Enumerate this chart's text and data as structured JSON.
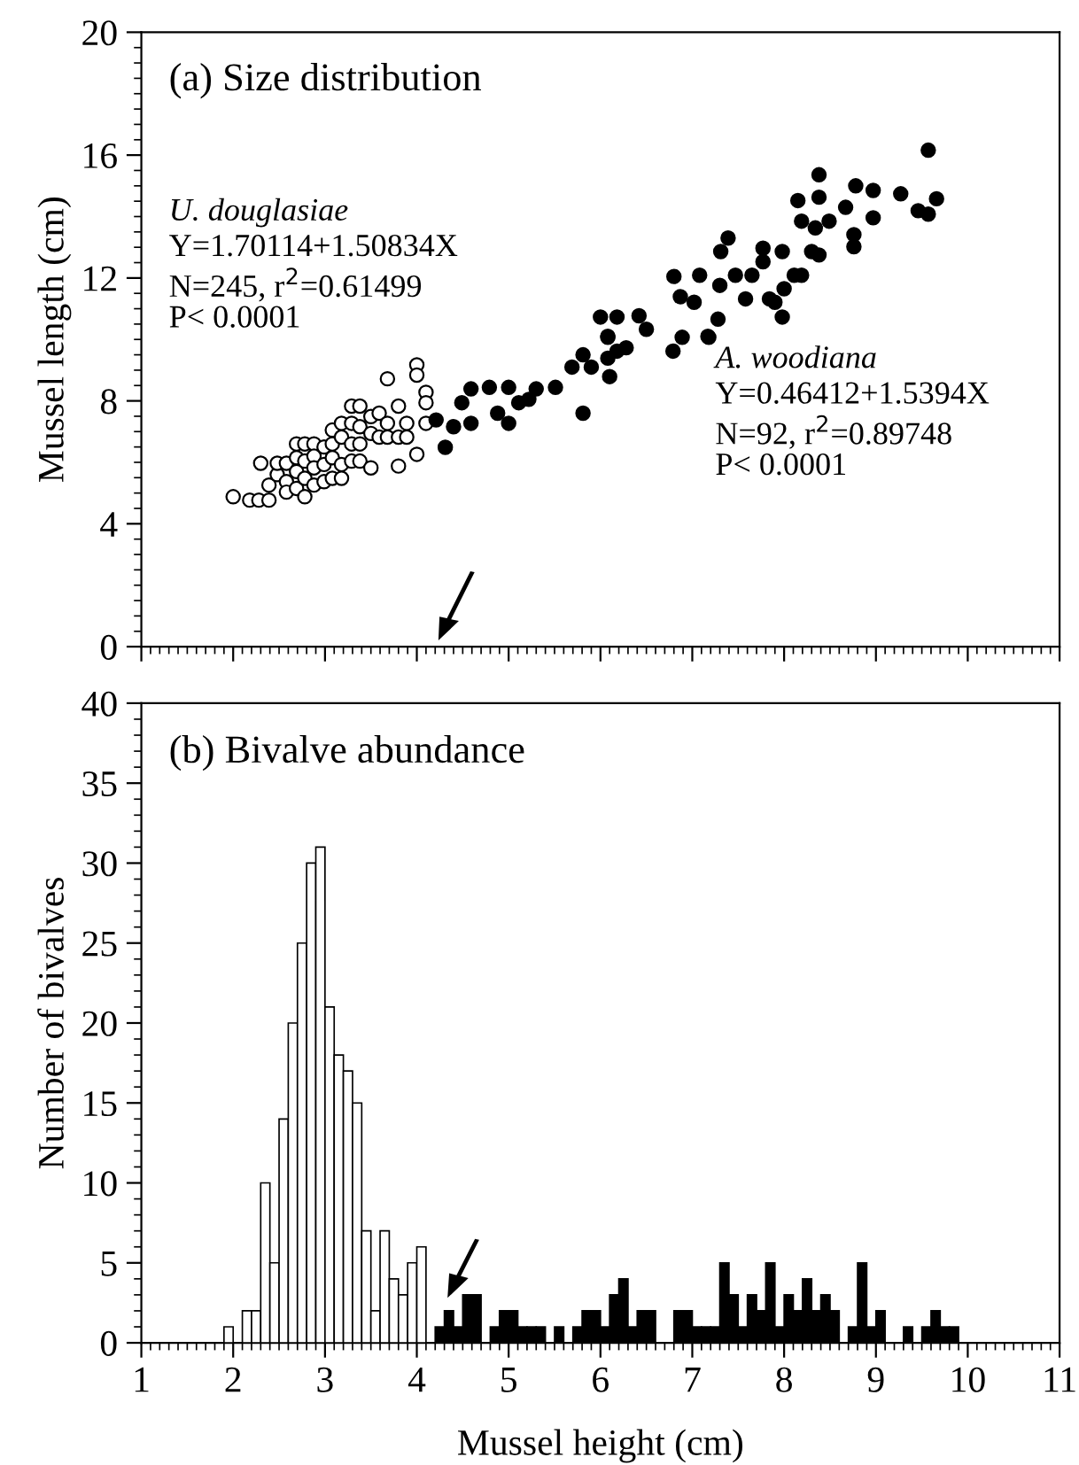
{
  "chart_data": [
    {
      "type": "scatter",
      "title": "(a) Size distribution",
      "ylabel": "Mussel length (cm)",
      "xlim": [
        1,
        11
      ],
      "xticks": [
        1,
        2,
        3,
        4,
        5,
        6,
        7,
        8,
        9,
        10,
        11
      ],
      "ylim": [
        0,
        20
      ],
      "yticks": [
        0,
        4,
        8,
        12,
        16,
        20
      ],
      "tick_labels": "y",
      "marker": "circle",
      "grid": false,
      "legend": false,
      "annotations": [
        "U. douglasiae",
        "Y=1.70114+1.50834X",
        "N=245, r$^{2}$=0.61499",
        "P< 0.0001",
        "A. woodiana",
        "Y=0.46412+1.5394X",
        "N=92, r$^{2}$=0.89748",
        "P< 0.0001"
      ],
      "series": [
        {
          "color": "#ffffff",
          "x": [
            2.0,
            2.18,
            2.28,
            2.3,
            2.39,
            2.39,
            2.48,
            2.48,
            2.58,
            2.58,
            2.58,
            2.69,
            2.69,
            2.69,
            2.69,
            2.78,
            2.78,
            2.78,
            2.78,
            2.88,
            2.88,
            2.88,
            2.88,
            2.99,
            2.99,
            2.99,
            3.08,
            3.08,
            3.08,
            3.08,
            3.18,
            3.18,
            3.18,
            3.18,
            3.29,
            3.29,
            3.29,
            3.29,
            3.38,
            3.38,
            3.38,
            3.38,
            3.5,
            3.5,
            3.5,
            3.59,
            3.59,
            3.68,
            3.68,
            3.68,
            3.8,
            3.8,
            3.8,
            3.89,
            3.89,
            4.0,
            4.0,
            4.0,
            4.1,
            4.1,
            4.1
          ],
          "values": [
            4.88,
            4.77,
            4.77,
            5.97,
            4.77,
            5.26,
            5.6,
            5.97,
            5.97,
            5.37,
            5.03,
            6.6,
            6.15,
            5.7,
            5.15,
            6.6,
            6.04,
            5.48,
            4.88,
            6.6,
            6.2,
            5.82,
            5.26,
            6.5,
            5.93,
            5.37,
            7.05,
            6.6,
            6.15,
            5.48,
            7.27,
            6.82,
            5.93,
            5.48,
            7.83,
            7.27,
            6.6,
            6.04,
            7.83,
            7.16,
            6.6,
            6.04,
            7.49,
            6.94,
            5.82,
            7.6,
            6.82,
            8.72,
            7.27,
            6.82,
            7.83,
            6.82,
            5.88,
            7.27,
            6.82,
            9.17,
            8.84,
            6.26,
            8.28,
            7.94,
            7.27
          ]
        },
        {
          "color": "#000000",
          "x": [
            4.21,
            4.31,
            4.4,
            4.49,
            4.59,
            4.59,
            4.79,
            4.88,
            5.0,
            5.0,
            5.11,
            5.22,
            5.3,
            5.51,
            5.69,
            5.81,
            5.81,
            5.9,
            6.08,
            6.1,
            6.18,
            6.28,
            6.79,
            6.89,
            7.18,
            6.08,
            6.0,
            6.18,
            6.08,
            6.42,
            6.5,
            6.8,
            6.87,
            7.02,
            7.08,
            7.17,
            7.28,
            7.3,
            7.31,
            7.39,
            7.47,
            7.58,
            7.65,
            7.77,
            7.77,
            7.84,
            7.9,
            7.98,
            8.0,
            7.98,
            8.11,
            8.19,
            8.15,
            8.19,
            8.3,
            8.38,
            8.38,
            8.34,
            8.49,
            8.38,
            8.67,
            8.78,
            8.76,
            8.76,
            8.97,
            8.97,
            9.27,
            9.46,
            9.57,
            9.57,
            9.66
          ],
          "values": [
            7.38,
            6.49,
            7.16,
            7.94,
            8.39,
            7.27,
            8.44,
            7.6,
            8.44,
            7.27,
            7.94,
            8.05,
            8.39,
            8.44,
            9.1,
            9.5,
            7.6,
            9.1,
            9.39,
            8.79,
            9.62,
            9.73,
            9.62,
            10.07,
            10.07,
            10.07,
            10.73,
            10.73,
            10.1,
            10.77,
            10.33,
            12.05,
            11.39,
            11.21,
            12.09,
            10.1,
            10.66,
            11.76,
            12.86,
            13.3,
            12.09,
            11.32,
            12.09,
            12.97,
            12.53,
            11.32,
            11.21,
            10.73,
            11.65,
            12.86,
            12.09,
            12.09,
            14.52,
            13.85,
            12.86,
            15.36,
            14.63,
            13.63,
            13.85,
            12.75,
            14.3,
            15.0,
            13.41,
            13.02,
            14.85,
            13.96,
            14.74,
            14.19,
            16.16,
            14.08,
            14.58
          ]
        }
      ]
    },
    {
      "type": "histogram",
      "title": "(b) Bivalve abundance",
      "xlabel": "Mussel height (cm)",
      "ylabel": "Number of bivalves",
      "xlim": [
        1,
        11
      ],
      "xticks": [
        1,
        2,
        3,
        4,
        5,
        6,
        7,
        8,
        9,
        10,
        11
      ],
      "ylim": [
        0,
        40
      ],
      "yticks": [
        0,
        5,
        10,
        15,
        20,
        25,
        30,
        35,
        40
      ],
      "grid": false,
      "legend": false,
      "bins": [
        1.9,
        2.0,
        2.1,
        2.2,
        2.3,
        2.4,
        2.5,
        2.6,
        2.7,
        2.8,
        2.9,
        3.0,
        3.1,
        3.2,
        3.3,
        3.4,
        3.5,
        3.6,
        3.7,
        3.8,
        3.9,
        4.0,
        4.1,
        4.2,
        4.3,
        4.4,
        4.5,
        4.6,
        4.7,
        4.8,
        4.9,
        5.0,
        5.1,
        5.2,
        5.3,
        5.4,
        5.5,
        5.6,
        5.7,
        5.8,
        5.9,
        6.0,
        6.1,
        6.2,
        6.3,
        6.4,
        6.5,
        6.6,
        6.7,
        6.8,
        6.9,
        7.0,
        7.1,
        7.2,
        7.3,
        7.4,
        7.5,
        7.6,
        7.7,
        7.8,
        7.9,
        8.0,
        8.1,
        8.2,
        8.3,
        8.4,
        8.5,
        8.6,
        8.7,
        8.8,
        8.9,
        9.0,
        9.1,
        9.2,
        9.3,
        9.4,
        9.5,
        9.6,
        9.7,
        9.8,
        9.9
      ],
      "values": [
        1,
        0,
        2,
        2,
        10,
        5,
        14,
        20,
        25,
        30,
        31,
        21,
        18,
        17,
        15,
        7,
        2,
        7,
        4,
        3,
        5,
        6,
        0,
        1,
        2,
        1,
        3,
        3,
        0,
        1,
        2,
        2,
        1,
        1,
        1,
        0,
        1,
        0,
        1,
        2,
        2,
        1,
        3,
        4,
        1,
        2,
        2,
        0,
        0,
        2,
        2,
        1,
        1,
        1,
        5,
        3,
        1,
        3,
        2,
        5,
        1,
        3,
        2,
        4,
        2,
        3,
        2,
        0,
        1,
        5,
        1,
        2,
        0,
        0,
        1,
        0,
        1,
        2,
        1,
        1
      ],
      "colors": [
        "#ffffff",
        "#ffffff",
        "#ffffff",
        "#ffffff",
        "#ffffff",
        "#ffffff",
        "#ffffff",
        "#ffffff",
        "#ffffff",
        "#ffffff",
        "#ffffff",
        "#ffffff",
        "#ffffff",
        "#ffffff",
        "#ffffff",
        "#ffffff",
        "#ffffff",
        "#ffffff",
        "#ffffff",
        "#ffffff",
        "#ffffff",
        "#ffffff",
        "#ffffff",
        "#000000",
        "#000000",
        "#000000",
        "#000000",
        "#000000",
        "#000000",
        "#000000",
        "#000000",
        "#000000",
        "#000000",
        "#000000",
        "#000000",
        "#000000",
        "#000000",
        "#000000",
        "#000000",
        "#000000",
        "#000000",
        "#000000",
        "#000000",
        "#000000",
        "#000000",
        "#000000",
        "#000000",
        "#000000",
        "#000000",
        "#000000",
        "#000000",
        "#000000",
        "#000000",
        "#000000",
        "#000000",
        "#000000",
        "#000000",
        "#000000",
        "#000000",
        "#000000",
        "#000000",
        "#000000",
        "#000000",
        "#000000",
        "#000000",
        "#000000",
        "#000000",
        "#000000",
        "#000000",
        "#000000",
        "#000000",
        "#000000",
        "#000000",
        "#000000",
        "#000000",
        "#000000",
        "#000000",
        "#000000",
        "#000000",
        "#000000"
      ]
    }
  ]
}
